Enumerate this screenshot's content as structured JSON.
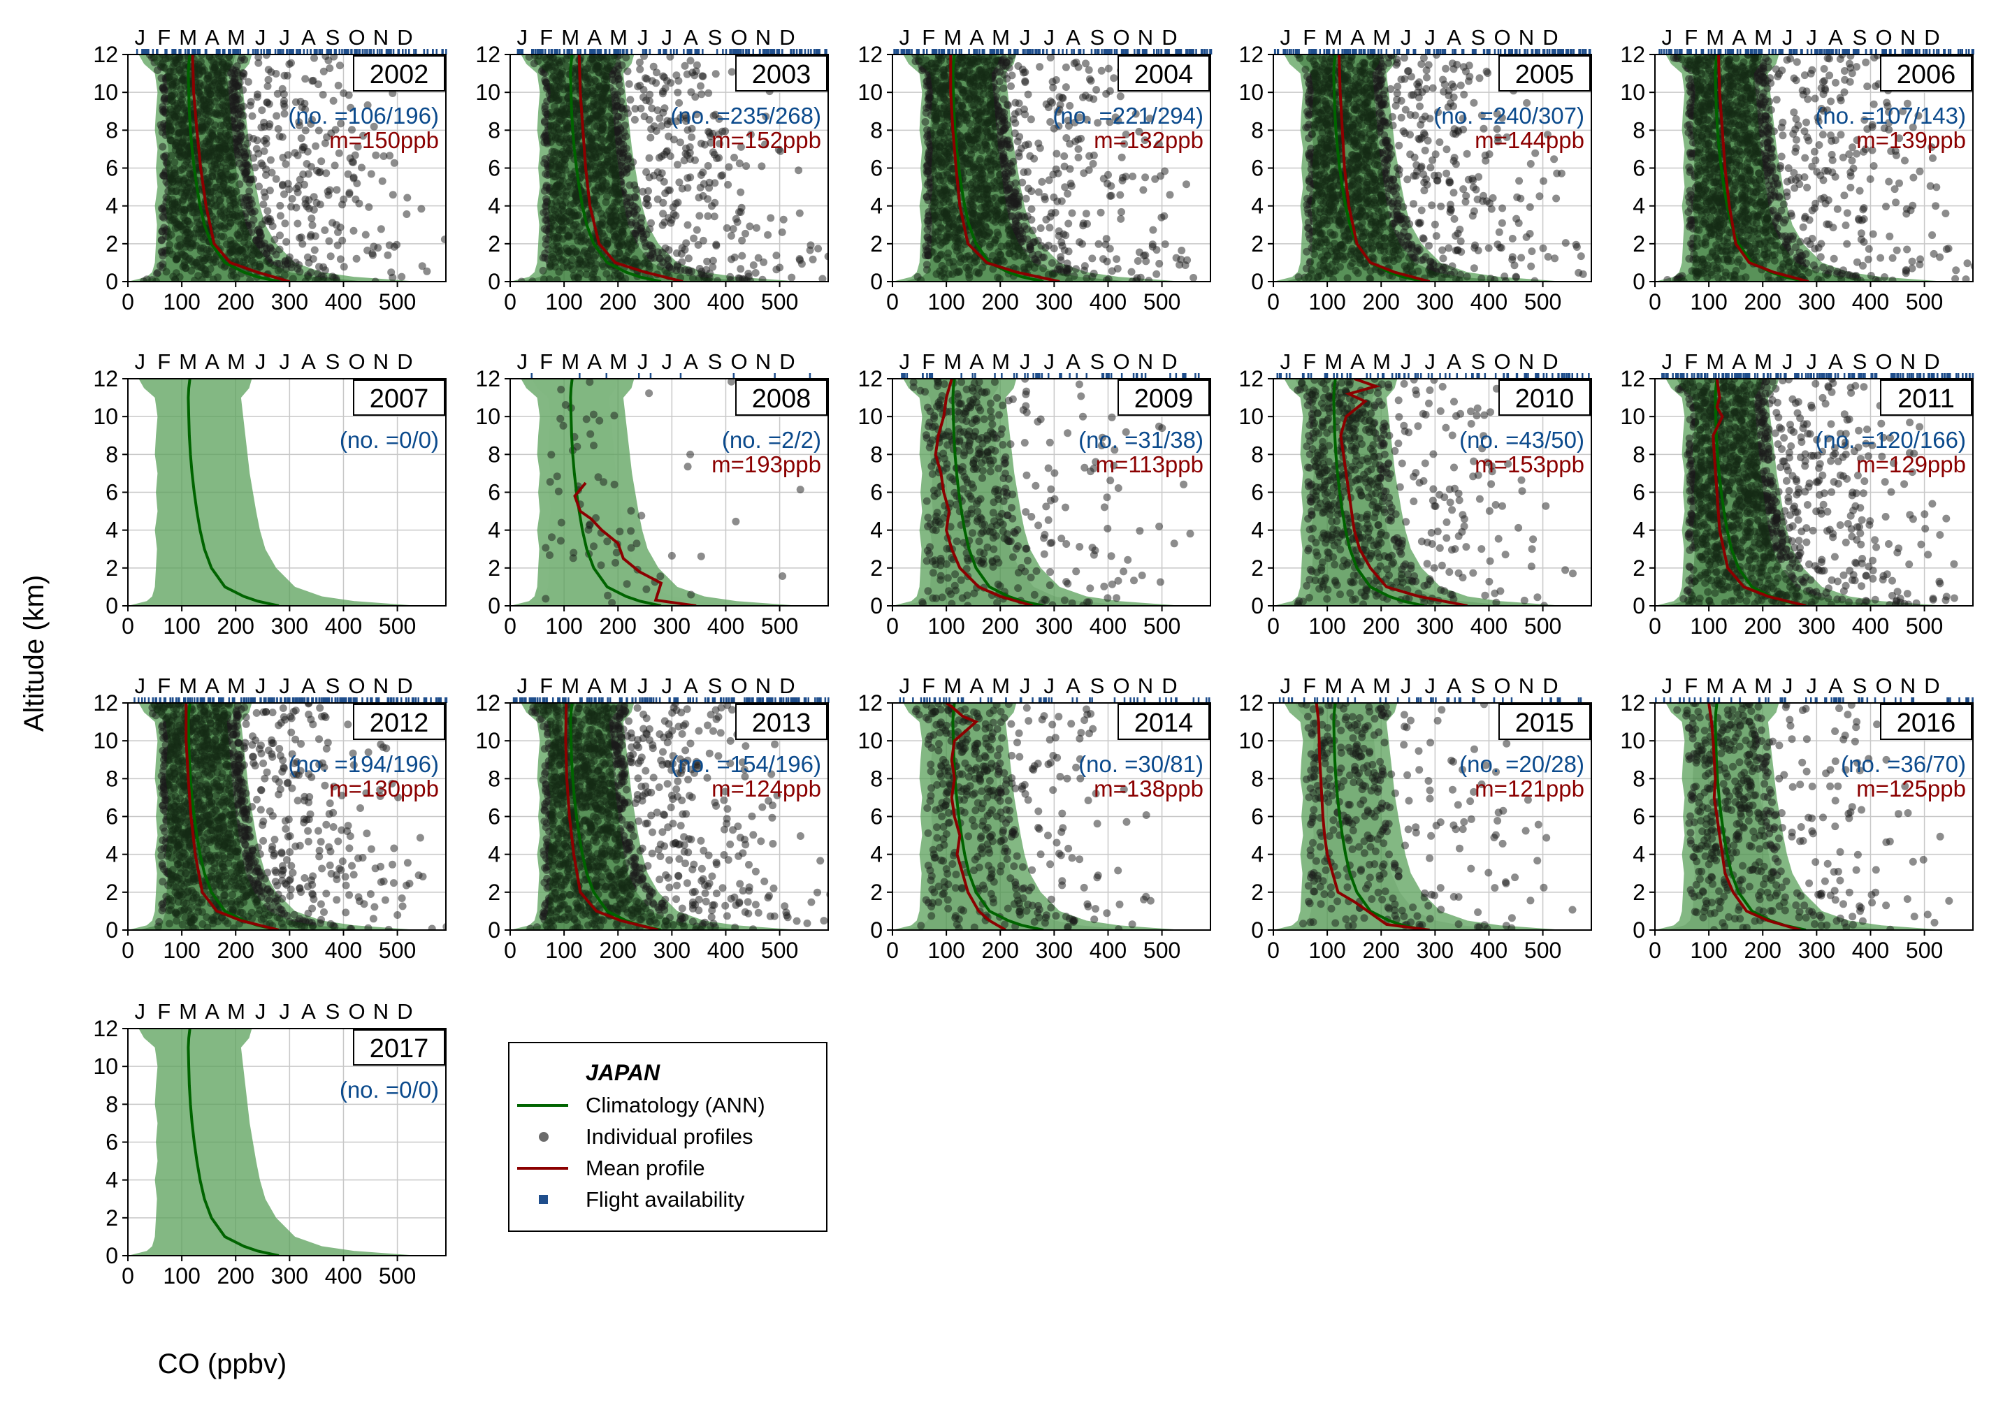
{
  "figure": {
    "ylabel": "Altitude (km)",
    "xlabel": "CO (ppbv)",
    "colors": {
      "climatology": "#006400",
      "band": "#5aa05a",
      "profiles": "#1a1a1a",
      "mean": "#8b0000",
      "flights": "#1f4e8c",
      "count_text": "#0b4a8c",
      "mean_text": "#8b0000"
    }
  },
  "months": [
    "J",
    "F",
    "M",
    "A",
    "M",
    "J",
    "J",
    "A",
    "S",
    "O",
    "N",
    "D"
  ],
  "axis": {
    "x_ticks": [
      "0",
      "100",
      "200",
      "300",
      "400",
      "500"
    ],
    "y_ticks": [
      "0",
      "2",
      "4",
      "6",
      "8",
      "10",
      "12"
    ]
  },
  "legend": {
    "title": "JAPAN",
    "items": [
      {
        "label": "Climatology (ANN)",
        "symbol": "line",
        "color": "#006400"
      },
      {
        "label": "Individual profiles",
        "symbol": "dot",
        "color": "#6b6b6b"
      },
      {
        "label": "Mean profile",
        "symbol": "line",
        "color": "#8b0000"
      },
      {
        "label": "Flight availability",
        "symbol": "square",
        "color": "#1f4e8c"
      }
    ]
  },
  "chart_data": {
    "type": "line",
    "title": "",
    "xlabel": "CO (ppbv)",
    "ylabel": "Altitude (km)",
    "xlim": [
      0,
      590
    ],
    "ylim": [
      0,
      12
    ],
    "climatology": {
      "altitude_km": [
        0,
        0.25,
        0.5,
        1,
        2,
        3,
        4,
        5,
        6,
        7,
        8,
        9,
        10,
        11,
        11.5,
        12
      ],
      "mean_co": [
        280,
        240,
        215,
        180,
        155,
        142,
        134,
        128,
        123,
        119,
        116,
        114,
        113,
        112,
        113,
        115
      ],
      "lower_co": [
        0,
        35,
        45,
        50,
        52,
        54,
        50,
        55,
        52,
        55,
        50,
        52,
        55,
        50,
        30,
        20
      ],
      "upper_co": [
        540,
        420,
        360,
        310,
        275,
        255,
        245,
        238,
        232,
        226,
        222,
        218,
        214,
        210,
        225,
        230
      ]
    },
    "panels": [
      {
        "year": "2002",
        "count": "(no. =106/196)",
        "mean": "m=150ppb",
        "has_data": true,
        "density": 1.0,
        "mean_profile": [
          [
            300,
            0
          ],
          [
            240,
            0.5
          ],
          [
            190,
            1
          ],
          [
            160,
            2
          ],
          [
            145,
            4
          ],
          [
            135,
            6
          ],
          [
            128,
            8
          ],
          [
            122,
            10
          ],
          [
            120,
            12
          ]
        ]
      },
      {
        "year": "2003",
        "count": "(no. =235/268)",
        "mean": "m=152ppb",
        "has_data": true,
        "density": 1.0,
        "mean_profile": [
          [
            320,
            0
          ],
          [
            250,
            0.5
          ],
          [
            195,
            1
          ],
          [
            165,
            2
          ],
          [
            148,
            4
          ],
          [
            140,
            6
          ],
          [
            135,
            8
          ],
          [
            130,
            10
          ],
          [
            128,
            12
          ]
        ]
      },
      {
        "year": "2004",
        "count": "(no. =221/294)",
        "mean": "m=132ppb",
        "has_data": true,
        "density": 1.0,
        "mean_profile": [
          [
            310,
            0
          ],
          [
            230,
            0.5
          ],
          [
            175,
            1
          ],
          [
            140,
            2
          ],
          [
            125,
            4
          ],
          [
            118,
            6
          ],
          [
            112,
            8
          ],
          [
            108,
            10
          ],
          [
            108,
            12
          ]
        ]
      },
      {
        "year": "2005",
        "count": "(no. =240/307)",
        "mean": "m=144ppb",
        "has_data": true,
        "density": 1.0,
        "mean_profile": [
          [
            290,
            0
          ],
          [
            225,
            0.5
          ],
          [
            180,
            1
          ],
          [
            155,
            2
          ],
          [
            140,
            4
          ],
          [
            132,
            6
          ],
          [
            128,
            8
          ],
          [
            124,
            10
          ],
          [
            122,
            12
          ]
        ]
      },
      {
        "year": "2006",
        "count": "(no. =107/143)",
        "mean": "m=139ppb",
        "has_data": true,
        "density": 1.0,
        "mean_profile": [
          [
            285,
            0
          ],
          [
            220,
            0.5
          ],
          [
            175,
            1
          ],
          [
            150,
            2
          ],
          [
            138,
            4
          ],
          [
            130,
            6
          ],
          [
            125,
            8
          ],
          [
            120,
            10
          ],
          [
            118,
            12
          ]
        ]
      },
      {
        "year": "2007",
        "count": "(no. =0/0)",
        "mean": "",
        "has_data": false,
        "density": 0,
        "mean_profile": []
      },
      {
        "year": "2008",
        "count": "(no. =2/2)",
        "mean": "m=193ppb",
        "has_data": true,
        "density": 0.02,
        "mean_profile": [
          [
            345,
            0
          ],
          [
            270,
            0.3
          ],
          [
            280,
            1.2
          ],
          [
            240,
            1.8
          ],
          [
            210,
            2.5
          ],
          [
            200,
            3.3
          ],
          [
            170,
            4
          ],
          [
            150,
            4.6
          ],
          [
            130,
            5
          ],
          [
            120,
            5.8
          ],
          [
            140,
            6.5
          ]
        ]
      },
      {
        "year": "2009",
        "count": "(no. =31/38)",
        "mean": "m=113ppb",
        "has_data": true,
        "density": 0.3,
        "mean_profile": [
          [
            260,
            0
          ],
          [
            200,
            0.5
          ],
          [
            160,
            1
          ],
          [
            125,
            2
          ],
          [
            110,
            3
          ],
          [
            100,
            4
          ],
          [
            105,
            5
          ],
          [
            95,
            6
          ],
          [
            90,
            7
          ],
          [
            80,
            8
          ],
          [
            85,
            9
          ],
          [
            95,
            10
          ],
          [
            100,
            11
          ],
          [
            110,
            12
          ]
        ]
      },
      {
        "year": "2010",
        "count": "(no. =43/50)",
        "mean": "m=153ppb",
        "has_data": true,
        "density": 0.45,
        "mean_profile": [
          [
            360,
            0
          ],
          [
            270,
            0.5
          ],
          [
            210,
            1
          ],
          [
            180,
            2
          ],
          [
            160,
            3
          ],
          [
            150,
            4
          ],
          [
            145,
            5
          ],
          [
            140,
            6
          ],
          [
            135,
            7
          ],
          [
            130,
            8
          ],
          [
            125,
            9
          ],
          [
            135,
            10
          ],
          [
            170,
            10.8
          ],
          [
            140,
            11.2
          ],
          [
            190,
            11.6
          ],
          [
            150,
            12
          ]
        ]
      },
      {
        "year": "2011",
        "count": "(no. =120/166)",
        "mean": "m=129ppb",
        "has_data": true,
        "density": 0.95,
        "mean_profile": [
          [
            280,
            0
          ],
          [
            210,
            0.5
          ],
          [
            165,
            1
          ],
          [
            135,
            2
          ],
          [
            120,
            4
          ],
          [
            115,
            6
          ],
          [
            110,
            8
          ],
          [
            108,
            9
          ],
          [
            125,
            10
          ],
          [
            115,
            10.5
          ],
          [
            120,
            11
          ],
          [
            115,
            12
          ]
        ]
      },
      {
        "year": "2012",
        "count": "(no. =194/196)",
        "mean": "m=130ppb",
        "has_data": true,
        "density": 1.0,
        "mean_profile": [
          [
            280,
            0
          ],
          [
            210,
            0.5
          ],
          [
            165,
            1
          ],
          [
            138,
            2
          ],
          [
            125,
            4
          ],
          [
            117,
            6
          ],
          [
            112,
            8
          ],
          [
            108,
            10
          ],
          [
            108,
            12
          ]
        ]
      },
      {
        "year": "2013",
        "count": "(no. =154/196)",
        "mean": "m=124ppb",
        "has_data": true,
        "density": 1.0,
        "mean_profile": [
          [
            275,
            0
          ],
          [
            205,
            0.5
          ],
          [
            160,
            1
          ],
          [
            130,
            2
          ],
          [
            118,
            4
          ],
          [
            110,
            6
          ],
          [
            105,
            8
          ],
          [
            103,
            10
          ],
          [
            104,
            12
          ]
        ]
      },
      {
        "year": "2014",
        "count": "(no. =30/81)",
        "mean": "m=138ppb",
        "has_data": true,
        "density": 0.3,
        "mean_profile": [
          [
            210,
            0
          ],
          [
            180,
            0.5
          ],
          [
            160,
            1
          ],
          [
            140,
            2
          ],
          [
            130,
            3
          ],
          [
            120,
            4
          ],
          [
            125,
            5
          ],
          [
            115,
            6
          ],
          [
            110,
            7
          ],
          [
            115,
            8
          ],
          [
            110,
            9
          ],
          [
            115,
            10
          ],
          [
            155,
            11
          ],
          [
            130,
            11.3
          ],
          [
            110,
            11.8
          ],
          [
            100,
            12
          ]
        ]
      },
      {
        "year": "2015",
        "count": "(no. =20/28)",
        "mean": "m=121ppb",
        "has_data": true,
        "density": 0.25,
        "mean_profile": [
          [
            290,
            0
          ],
          [
            210,
            0.3
          ],
          [
            175,
            1
          ],
          [
            150,
            1.5
          ],
          [
            120,
            2
          ],
          [
            110,
            3
          ],
          [
            100,
            4
          ],
          [
            95,
            5
          ],
          [
            92,
            6
          ],
          [
            90,
            7
          ],
          [
            88,
            8
          ],
          [
            86,
            9
          ],
          [
            85,
            10
          ],
          [
            84,
            11
          ],
          [
            80,
            12
          ]
        ]
      },
      {
        "year": "2016",
        "count": "(no. =36/70)",
        "mean": "m=125ppb",
        "has_data": true,
        "density": 0.35,
        "mean_profile": [
          [
            270,
            0
          ],
          [
            210,
            0.5
          ],
          [
            170,
            1
          ],
          [
            145,
            2
          ],
          [
            130,
            3
          ],
          [
            125,
            4
          ],
          [
            120,
            5
          ],
          [
            115,
            6
          ],
          [
            110,
            7
          ],
          [
            112,
            8
          ],
          [
            110,
            9
          ],
          [
            108,
            10
          ],
          [
            105,
            11
          ],
          [
            100,
            12
          ]
        ]
      },
      {
        "year": "2017",
        "count": "(no. =0/0)",
        "mean": "",
        "has_data": false,
        "density": 0,
        "mean_profile": []
      }
    ]
  }
}
